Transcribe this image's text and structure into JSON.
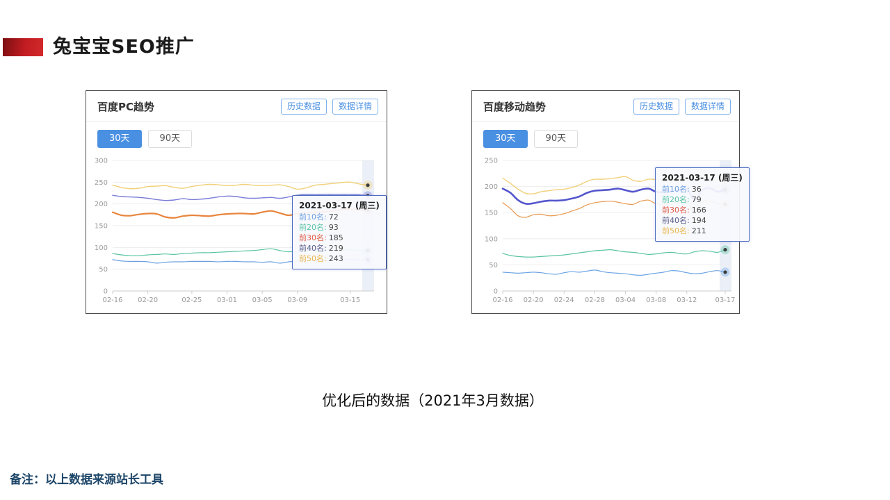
{
  "page": {
    "title": "兔宝宝SEO推广",
    "caption": "优化后的数据（2021年3月数据）",
    "footnote": "备注：以上数据来源站长工具",
    "accent_color": "#c21d22",
    "footnote_color": "#1c4568"
  },
  "chart_data": [
    {
      "type": "line",
      "title": "百度PC趋势",
      "buttons": [
        "历史数据",
        "数据详情"
      ],
      "tabs": [
        {
          "label": "30天",
          "active": true
        },
        {
          "label": "90天",
          "active": false
        }
      ],
      "xlabel": "",
      "ylabel": "",
      "ylim": [
        0,
        300
      ],
      "yticks": [
        0,
        50,
        100,
        150,
        200,
        250,
        300
      ],
      "grid": true,
      "legend": "none",
      "x_tick_labels": [
        "02-16",
        "02-20",
        "02-25",
        "03-01",
        "03-05",
        "03-09",
        "03-15"
      ],
      "x_tick_index": [
        0,
        4,
        9,
        13,
        17,
        21,
        27
      ],
      "highlight_band_color": "#dde5f1",
      "axis_color": "#999999",
      "series": [
        {
          "name": "前50名",
          "color": "#f0d078",
          "width": 1.4,
          "values": [
            243,
            238,
            235,
            236,
            240,
            241,
            242,
            238,
            236,
            240,
            243,
            245,
            244,
            242,
            243,
            245,
            243,
            242,
            243,
            244,
            240,
            234,
            237,
            243,
            245,
            247,
            249,
            250,
            246,
            243
          ]
        },
        {
          "name": "前40名",
          "color": "#7b7dd8",
          "width": 1.4,
          "values": [
            220,
            217,
            216,
            215,
            213,
            210,
            208,
            209,
            212,
            210,
            211,
            213,
            216,
            218,
            217,
            214,
            213,
            214,
            215,
            213,
            216,
            220,
            222,
            221,
            222,
            222,
            222,
            222,
            221,
            219
          ]
        },
        {
          "name": "前30名",
          "color": "#e8843c",
          "width": 2.2,
          "values": [
            181,
            174,
            173,
            176,
            178,
            177,
            170,
            168,
            172,
            174,
            173,
            172,
            175,
            177,
            178,
            178,
            177,
            181,
            184,
            179,
            174,
            178,
            180,
            181,
            182,
            184,
            187,
            188,
            186,
            185
          ]
        },
        {
          "name": "前20名",
          "color": "#5ac3a4",
          "width": 1.2,
          "values": [
            86,
            83,
            81,
            81,
            83,
            84,
            85,
            84,
            86,
            87,
            88,
            88,
            89,
            90,
            91,
            92,
            93,
            95,
            97,
            93,
            90,
            92,
            93,
            93,
            92,
            93,
            94,
            95,
            93,
            93
          ]
        },
        {
          "name": "前10名",
          "color": "#6b9fe0",
          "width": 1.2,
          "values": [
            72,
            69,
            68,
            68,
            67,
            64,
            66,
            67,
            67,
            68,
            68,
            68,
            67,
            68,
            68,
            67,
            67,
            66,
            67,
            64,
            67,
            69,
            70,
            70,
            70,
            71,
            71,
            73,
            71,
            72
          ]
        }
      ],
      "tooltip": {
        "title": "2021-03-17 (周三)",
        "rows": [
          {
            "label": "前10名:",
            "value": "72",
            "color": "#6b9fe0"
          },
          {
            "label": "前20名:",
            "value": "93",
            "color": "#55c3a2"
          },
          {
            "label": "前30名:",
            "value": "185",
            "color": "#e05a45"
          },
          {
            "label": "前40名:",
            "value": "219",
            "color": "#585c88"
          },
          {
            "label": "前50名:",
            "value": "243",
            "color": "#e8b64d"
          }
        ]
      }
    },
    {
      "type": "line",
      "title": "百度移动趋势",
      "buttons": [
        "历史数据",
        "数据详情"
      ],
      "tabs": [
        {
          "label": "30天",
          "active": true
        },
        {
          "label": "90天",
          "active": false
        }
      ],
      "xlabel": "",
      "ylabel": "",
      "ylim": [
        0,
        250
      ],
      "yticks": [
        0,
        50,
        100,
        150,
        200,
        250
      ],
      "grid": true,
      "legend": "none",
      "x_tick_labels": [
        "02-16",
        "02-20",
        "02-24",
        "02-28",
        "03-04",
        "03-08",
        "03-12",
        "03-17"
      ],
      "x_tick_index": [
        0,
        4,
        8,
        12,
        16,
        20,
        24,
        29
      ],
      "highlight_band_color": "#dde5f1",
      "axis_color": "#999999",
      "series": [
        {
          "name": "前50名",
          "color": "#f0d078",
          "width": 1.4,
          "values": [
            216,
            206,
            195,
            187,
            186,
            190,
            192,
            194,
            195,
            198,
            203,
            210,
            214,
            214,
            215,
            217,
            219,
            212,
            210,
            214,
            213,
            209,
            212,
            214,
            211,
            213,
            216,
            210,
            212,
            211
          ]
        },
        {
          "name": "前40名",
          "color": "#5456cc",
          "width": 2.6,
          "values": [
            196,
            188,
            174,
            167,
            168,
            171,
            173,
            173,
            174,
            177,
            181,
            188,
            192,
            193,
            194,
            196,
            193,
            190,
            194,
            196,
            190,
            189,
            191,
            193,
            196,
            175,
            193,
            197,
            190,
            194
          ]
        },
        {
          "name": "前30名",
          "color": "#e8984f",
          "width": 1.2,
          "values": [
            169,
            158,
            144,
            141,
            146,
            147,
            144,
            145,
            148,
            153,
            158,
            165,
            169,
            171,
            172,
            170,
            167,
            166,
            172,
            174,
            167,
            166,
            168,
            170,
            171,
            150,
            170,
            172,
            168,
            166
          ]
        },
        {
          "name": "前20名",
          "color": "#5ac3a4",
          "width": 1.2,
          "values": [
            72,
            68,
            66,
            65,
            65,
            66,
            67,
            68,
            69,
            71,
            73,
            75,
            77,
            78,
            79,
            77,
            75,
            74,
            72,
            70,
            71,
            73,
            74,
            72,
            71,
            75,
            77,
            76,
            74,
            79
          ]
        },
        {
          "name": "前10名",
          "color": "#6ba3e5",
          "width": 1.2,
          "values": [
            36,
            35,
            34,
            35,
            36,
            35,
            33,
            32,
            35,
            37,
            36,
            38,
            40,
            37,
            35,
            34,
            33,
            31,
            30,
            32,
            34,
            36,
            39,
            38,
            35,
            33,
            34,
            37,
            39,
            36
          ]
        }
      ],
      "tooltip": {
        "title": "2021-03-17 (周三)",
        "rows": [
          {
            "label": "前10名:",
            "value": "36",
            "color": "#6b9fe0"
          },
          {
            "label": "前20名:",
            "value": "79",
            "color": "#55c3a2"
          },
          {
            "label": "前30名:",
            "value": "166",
            "color": "#e05a45"
          },
          {
            "label": "前40名:",
            "value": "194",
            "color": "#585c88"
          },
          {
            "label": "前50名:",
            "value": "211",
            "color": "#e8b64d"
          }
        ]
      }
    }
  ]
}
